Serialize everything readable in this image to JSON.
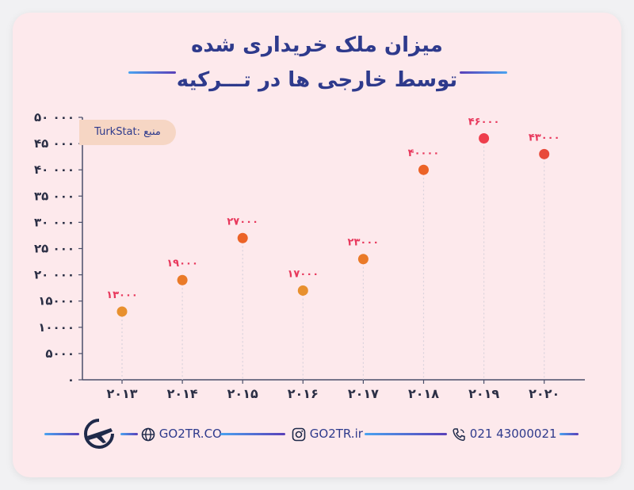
{
  "title": {
    "line1": "میزان ملک خریداری شده",
    "line2": "توسط خارجی ها در تـــرکیه"
  },
  "source_label": "منبع :TurkStat",
  "chart_data": {
    "type": "scatter",
    "categories": [
      "۲۰۱۳",
      "۲۰۱۴",
      "۲۰۱۵",
      "۲۰۱۶",
      "۲۰۱۷",
      "۲۰۱۸",
      "۲۰۱۹",
      "۲۰۲۰"
    ],
    "values": [
      13000,
      19000,
      27000,
      17000,
      23000,
      40000,
      46000,
      43000
    ],
    "value_labels": [
      "۱۳۰۰۰",
      "۱۹۰۰۰",
      "۲۷۰۰۰",
      "۱۷۰۰۰",
      "۲۳۰۰۰",
      "۴۰۰۰۰",
      "۴۶۰۰۰",
      "۴۳۰۰۰"
    ],
    "ylim": [
      0,
      50000
    ],
    "yticks": [
      0,
      5000,
      10000,
      15000,
      20000,
      25000,
      30000,
      35000,
      40000,
      45000,
      50000
    ],
    "ytick_labels": [
      "۰",
      "۵۰۰۰",
      "۱۰۰۰۰",
      "۱۵۰۰۰",
      "۲۰ ۰۰۰",
      "۲۵ ۰۰۰",
      "۳۰ ۰۰۰",
      "۳۵ ۰۰۰",
      "۴۰ ۰۰۰",
      "۴۵ ۰۰۰",
      "۵۰ ۰۰۰"
    ],
    "point_colors": [
      "#e8902e",
      "#ea7a28",
      "#ec6327",
      "#e8902e",
      "#ea7a28",
      "#ec6327",
      "#ee3e4c",
      "#e84a3a"
    ],
    "label_color": "#e8385c",
    "title": "",
    "xlabel": "",
    "ylabel": ""
  },
  "footer": {
    "website": "GO2TR.CO",
    "instagram": "GO2TR.ir",
    "phone": "021 43000021"
  },
  "colors": {
    "title": "#2e3a8c",
    "axis": "#4a4f6a",
    "accent_blue": "#4aa3f0",
    "accent_purple": "#5a3fb8"
  }
}
